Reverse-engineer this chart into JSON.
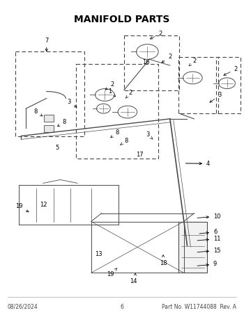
{
  "title": "MANIFOLD PARTS",
  "title_fontsize": 10,
  "footer_left": "08/26/2024",
  "footer_center": "6",
  "footer_right": "Part No. W11744088  Rev. A",
  "footer_fontsize": 5.5,
  "bg_color": "#ffffff",
  "line_color": "#000000",
  "diagram_color": "#4a4a4a",
  "label_fontsize": 6,
  "fig_width": 3.5,
  "fig_height": 4.53,
  "dpi": 100
}
